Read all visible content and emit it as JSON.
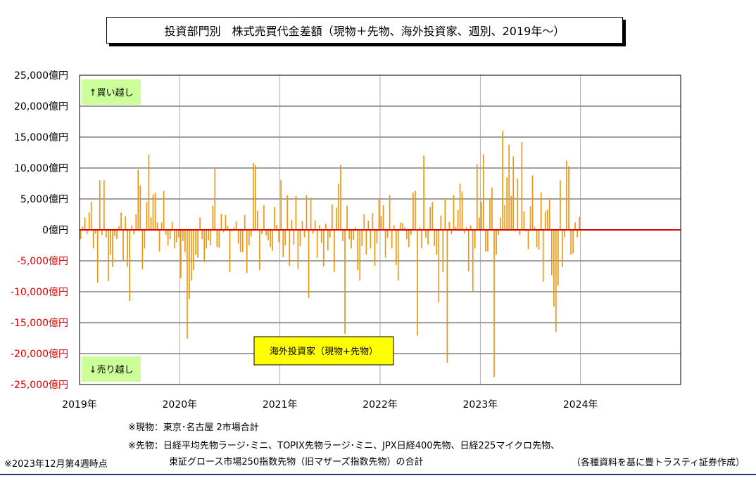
{
  "header": {
    "title": "投資部門別　株式売買代金差額（現物＋先物、海外投資家、週別、2019年～）"
  },
  "colors": {
    "bar": "#f0960a",
    "zero_line": "#e00000",
    "negative_label": "#e00000",
    "label_box": "#ccff99",
    "legend_box": "#ffff00"
  },
  "chart_data": {
    "type": "bar",
    "title": "投資部門別　株式売買代金差額（現物＋先物、海外投資家、週別、2019年～）",
    "unit": "億円",
    "ylim": [
      -25000,
      25000
    ],
    "y_ticks": [
      25000,
      20000,
      15000,
      10000,
      5000,
      0,
      -5000,
      -10000,
      -15000,
      -20000,
      -25000
    ],
    "y_tick_labels": [
      "25,000億円",
      "20,000億円",
      "15,000億円",
      "10,000億円",
      "5,000億円",
      "0億円",
      "-5,000億円",
      "-10,000億円",
      "-15,000億円",
      "-20,000億円",
      "-25,000億円"
    ],
    "x_tick_labels": [
      "2019年",
      "2020年",
      "2021年",
      "2022年",
      "2023年",
      "2024年"
    ],
    "x_domain": [
      "2019",
      "2025"
    ],
    "grid": true,
    "series": [
      {
        "name": "海外投資家（現物+先物）",
        "start": "2019年1月第1週",
        "end": "2023年12月第4週",
        "values": [
          -1500,
          500,
          2000,
          -700,
          2800,
          4500,
          -3000,
          -600,
          -8500,
          8000,
          -800,
          8000,
          -1200,
          -8300,
          -4000,
          -6000,
          -1000,
          -1500,
          600,
          2800,
          -5000,
          2200,
          -6000,
          -11500,
          700,
          -700,
          2500,
          9700,
          7200,
          -6400,
          -3000,
          4500,
          12200,
          2000,
          5700,
          6000,
          1200,
          -3500,
          1200,
          6300,
          -800,
          -2500,
          -1500,
          1300,
          -3000,
          -2000,
          -1200,
          -7800,
          -1800,
          -3600,
          -17600,
          -11200,
          -8200,
          -6500,
          -4000,
          -4500,
          2000,
          -1500,
          -5200,
          -3000,
          -1700,
          -2500,
          3900,
          10000,
          -2800,
          -2900,
          2600,
          -400,
          2400,
          600,
          -6800,
          -200,
          400,
          1400,
          -2200,
          -3600,
          -3600,
          2400,
          -7000,
          -2500,
          -1100,
          10800,
          10500,
          3100,
          -6500,
          -700,
          4000,
          -900,
          -1700,
          -2800,
          -3400,
          3700,
          800,
          -2000,
          8100,
          -4400,
          -2500,
          5600,
          -5800,
          1600,
          -2400,
          5500,
          -6300,
          -2600,
          1400,
          -1200,
          5600,
          -11000,
          5200,
          -600,
          1500,
          -4500,
          800,
          -2100,
          -5900,
          1000,
          -3300,
          -1200,
          4100,
          -6800,
          3600,
          7500,
          10500,
          -1800,
          -16800,
          3900,
          -1500,
          -3000,
          -1600,
          400,
          -6500,
          -8200,
          -2600,
          2500,
          -4000,
          1500,
          -3000,
          2700,
          -5800,
          -2200,
          4900,
          2200,
          4000,
          -4500,
          -1300,
          5600,
          -3000,
          800,
          -5700,
          -8200,
          1200,
          1100,
          400,
          -1500,
          -2800,
          -800,
          6000,
          6300,
          -17100,
          400,
          -3000,
          12000,
          -1300,
          -2400,
          3700,
          4500,
          -2600,
          -4000,
          -11700,
          2300,
          -6800,
          5000,
          -21500,
          1300,
          -700,
          5600,
          500,
          3200,
          7500,
          6200,
          -600,
          400,
          -6700,
          700,
          -10000,
          -3000,
          10600,
          2000,
          4500,
          12200,
          -3500,
          -3500,
          5000,
          6800,
          -23800,
          -4000,
          -800,
          2000,
          16000,
          4000,
          8500,
          13800,
          5500,
          11900,
          -200,
          8300,
          -800,
          14200,
          3000,
          -200,
          -3100,
          3800,
          8800,
          500,
          -2800,
          -3200,
          6100,
          -8400,
          3000,
          3300,
          5100,
          -7300,
          -12400,
          -16500,
          -9000,
          8000,
          -6000,
          -1200,
          11200,
          10300,
          -4000,
          -3800,
          1200,
          -1200,
          2100
        ]
      }
    ]
  },
  "annotations": {
    "buy_label": "↑買い越し",
    "sell_label": "↓売り越し",
    "legend": "海外投資家（現物+先物）"
  },
  "footer": {
    "note_genbutsu": "※現物：東京･名古屋 2市場合計",
    "note_sakimono_1": "※先物：日経平均先物ラージ･ミニ、TOPIX先物ラージ･ミニ、JPX日経400先物、日経225マイクロ先物、",
    "note_sakimono_2": "東証グロース市場250指数先物（旧マザーズ指数先物）の合計",
    "as_of": "※2023年12月第4週時点",
    "source": "（各種資料を基に豊トラスティ証券作成）"
  }
}
